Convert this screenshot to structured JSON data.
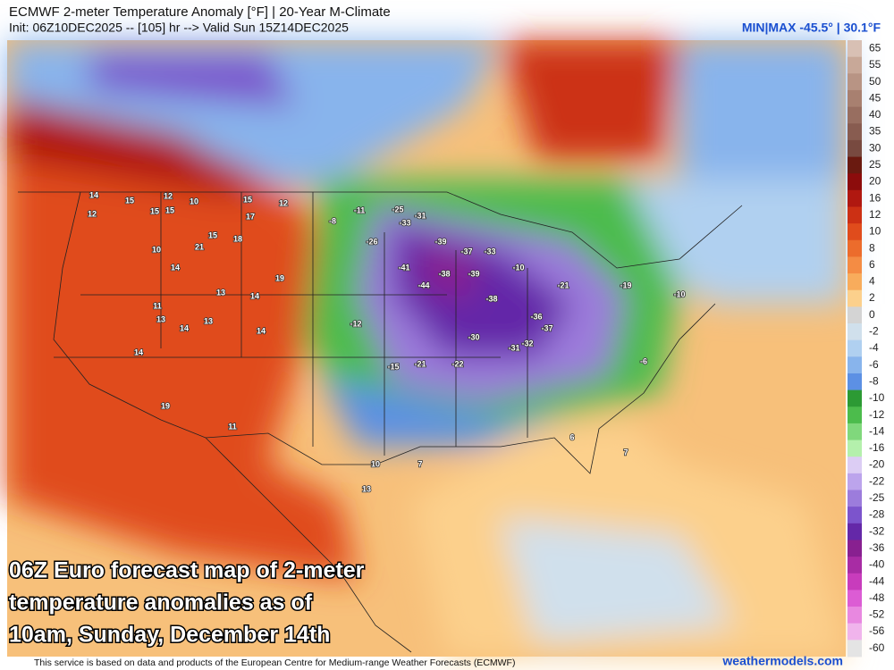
{
  "header": {
    "title": "ECMWF 2-meter Temperature Anomaly [°F] | 20-Year M-Climate",
    "subtitle": "Init: 06Z10DEC2025 -- [105] hr --> Valid Sun 15Z14DEC2025",
    "min_max": "MIN|MAX -45.5° | 30.1°F"
  },
  "caption": [
    "06Z Euro forecast map of 2-meter",
    "temperature anomalies as of",
    "10am, Sunday, December 14th"
  ],
  "footer": {
    "credit": "This service is based on data and products of the European Centre for Medium-range Weather Forecasts (ECMWF)",
    "site": "weathermodels.com"
  },
  "colorbar": {
    "levels": [
      65,
      55,
      50,
      45,
      40,
      35,
      30,
      25,
      20,
      16,
      12,
      10,
      8,
      6,
      4,
      2,
      0,
      -2,
      -4,
      -6,
      -8,
      -10,
      -12,
      -14,
      -16,
      -20,
      -22,
      -25,
      -28,
      -32,
      -36,
      -40,
      -44,
      -48,
      -52,
      -56,
      -60
    ],
    "colors": [
      "#d8c0b4",
      "#c8a898",
      "#b89484",
      "#a88070",
      "#986e60",
      "#885c50",
      "#784a40",
      "#6a1a10",
      "#8c0c0c",
      "#b01810",
      "#cc3014",
      "#e04c1c",
      "#ec6c2c",
      "#f48c44",
      "#f8ac5c",
      "#fcd08c",
      "#d4d4d4",
      "#d0e0ec",
      "#b0d0f0",
      "#88b4ec",
      "#5c90e4",
      "#2c9a34",
      "#4cbc4c",
      "#80d87c",
      "#b4f0ac",
      "#dccdf4",
      "#bca4ec",
      "#9c7cdc",
      "#7c54cc",
      "#6428a8",
      "#882090",
      "#a82ca4",
      "#c83cbc",
      "#dc5cd4",
      "#e888e0",
      "#f0b4ec",
      "#e4e4e4"
    ]
  },
  "map": {
    "points": [
      14,
      15,
      12,
      10,
      15,
      12,
      12,
      15,
      15,
      18,
      17,
      21,
      10,
      14,
      19,
      14,
      13,
      11,
      13,
      14,
      14,
      13,
      14,
      19,
      11,
      15,
      -25,
      -31,
      -33,
      -39,
      -37,
      -41,
      -38,
      -39,
      -44,
      -38,
      -36,
      -37,
      -32,
      -31,
      -30,
      -22,
      -21,
      -15,
      -12,
      -11,
      -8,
      -26,
      -33,
      -10,
      -21,
      -19,
      -10,
      -6,
      6,
      7,
      7,
      10,
      13
    ]
  }
}
